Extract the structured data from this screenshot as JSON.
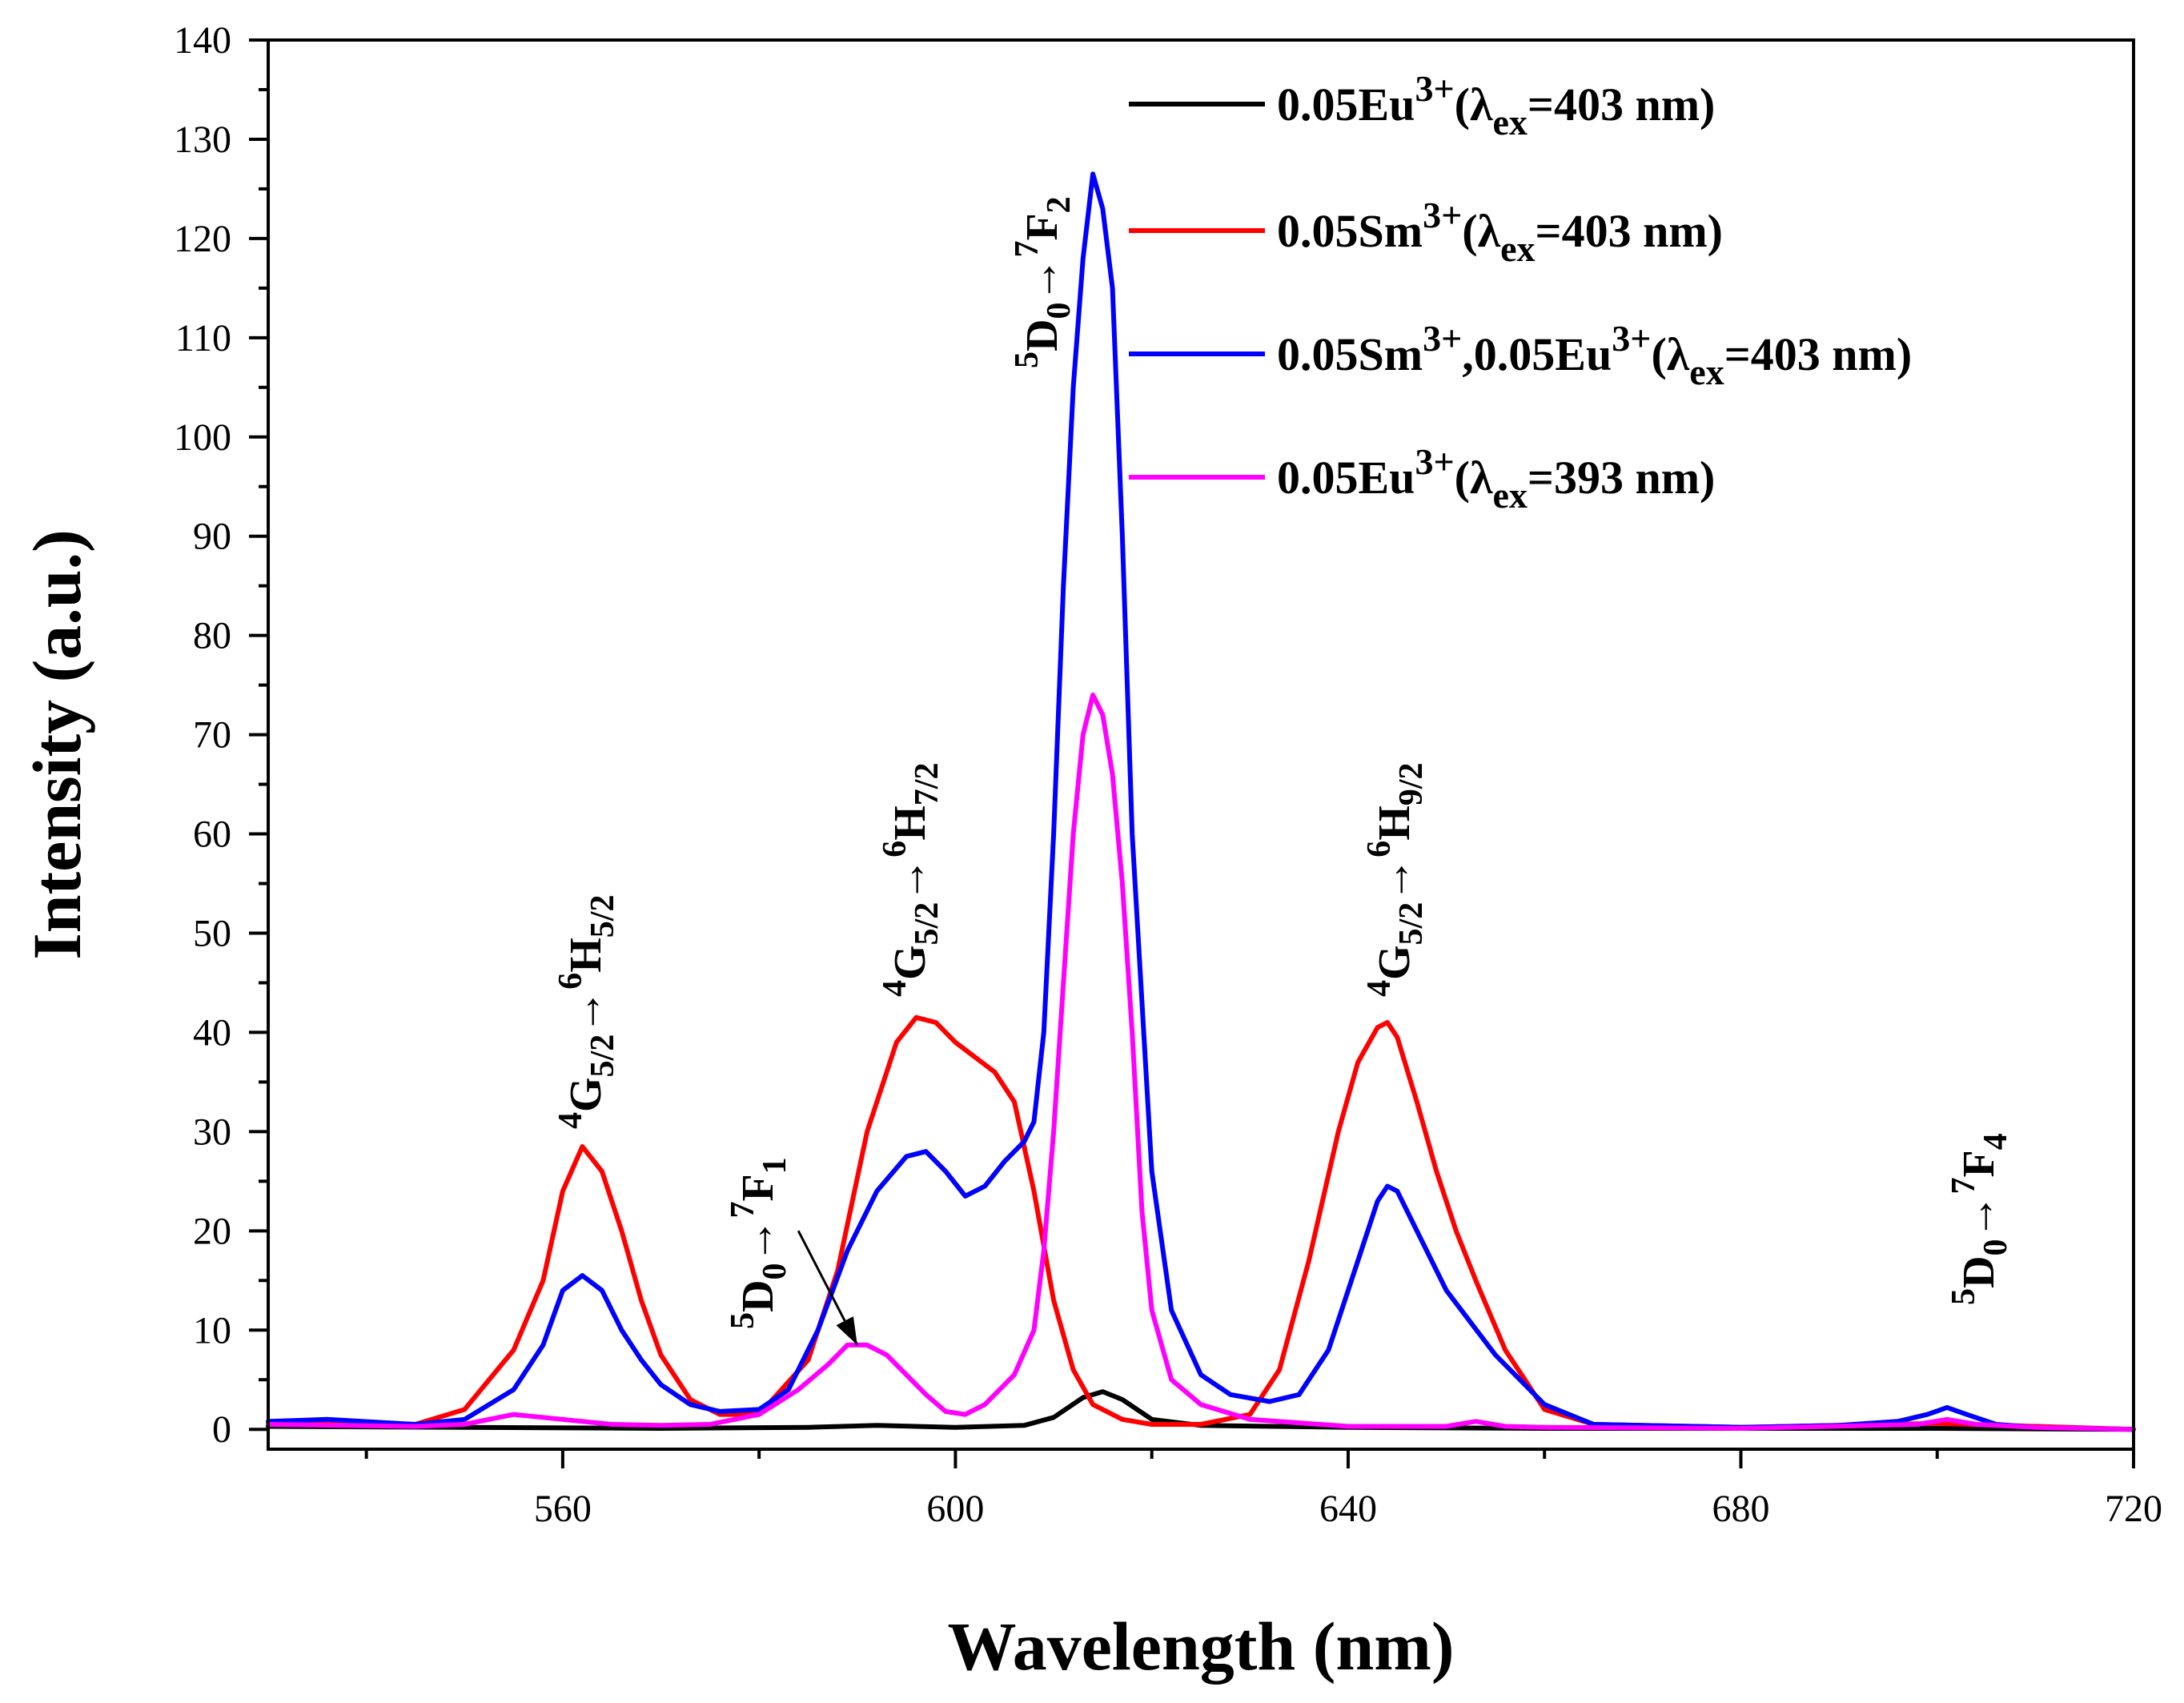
{
  "chart_data": {
    "type": "line",
    "xlabel": "Wavelength (nm)",
    "ylabel": "Intensity (a.u.)",
    "xlim": [
      530,
      720
    ],
    "ylim": [
      -2,
      140
    ],
    "xticks": [
      560,
      600,
      640,
      680,
      720
    ],
    "yticks": [
      0,
      10,
      20,
      30,
      40,
      50,
      60,
      70,
      80,
      90,
      100,
      110,
      120,
      130,
      140
    ],
    "grid": false,
    "legend_position": "top-right",
    "series": [
      {
        "name": "0.05Eu3+(λex=403 nm)",
        "label_parts": {
          "base": "0.05Eu",
          "sup": "3+",
          "open": "(λ",
          "sub": "ex",
          "rest": "=403 nm)"
        },
        "color": "#000000",
        "x": [
          530,
          550,
          570,
          585,
          592,
          600,
          607,
          610,
          613,
          615,
          617,
          620,
          625,
          640,
          660,
          700,
          720
        ],
        "y": [
          0.3,
          0.2,
          0.1,
          0.2,
          0.4,
          0.2,
          0.4,
          1.2,
          3.2,
          3.8,
          3.0,
          1.0,
          0.4,
          0.2,
          0.1,
          0.1,
          0.0
        ]
      },
      {
        "name": "0.05Sm3+(λex=403 nm)",
        "label_parts": {
          "base": "0.05Sm",
          "sup": "3+",
          "open": "(λ",
          "sub": "ex",
          "rest": "=403 nm)"
        },
        "color": "#ff0000",
        "x": [
          530,
          545,
          550,
          555,
          558,
          560,
          562,
          564,
          566,
          568,
          570,
          573,
          576,
          580,
          585,
          588,
          591,
          594,
          596,
          598,
          600,
          602,
          604,
          606,
          608,
          610,
          612,
          614,
          617,
          620,
          625,
          630,
          633,
          636,
          639,
          641,
          643,
          644,
          645,
          647,
          649,
          651,
          653,
          656,
          660,
          665,
          680,
          700,
          720
        ],
        "y": [
          0.5,
          0.5,
          2.0,
          8.0,
          15.0,
          24.0,
          28.5,
          26.0,
          20.0,
          13.0,
          7.5,
          3.0,
          1.5,
          1.5,
          7.0,
          16.0,
          30.0,
          39.0,
          41.5,
          41.0,
          39.0,
          37.5,
          36.0,
          33.0,
          24.0,
          13.0,
          6.0,
          2.5,
          1.0,
          0.5,
          0.5,
          1.5,
          6.0,
          17.0,
          30.0,
          37.0,
          40.5,
          41.0,
          39.5,
          33.0,
          26.0,
          20.0,
          15.0,
          8.0,
          2.0,
          0.5,
          0.2,
          0.6,
          0.0
        ]
      },
      {
        "name": "0.05Sm3+,0.05Eu3+(λex=403 nm)",
        "label_parts": {
          "base": "0.05Sm",
          "sup": "3+",
          "mid": ",0.05Eu",
          "sup2": "3+",
          "open": "(λ",
          "sub": "ex",
          "rest": "=403 nm)"
        },
        "color": "#0000ff",
        "x": [
          530,
          536,
          545,
          550,
          555,
          558,
          560,
          562,
          564,
          566,
          568,
          570,
          573,
          576,
          580,
          583,
          586,
          589,
          592,
          595,
          597,
          599,
          601,
          603,
          605,
          607,
          608,
          609,
          610,
          611,
          612,
          613,
          614,
          615,
          616,
          617,
          618,
          620,
          622,
          625,
          628,
          632,
          635,
          638,
          641,
          643,
          644,
          645,
          647,
          650,
          655,
          660,
          665,
          680,
          690,
          696,
          699,
          701,
          703,
          706,
          710,
          720
        ],
        "y": [
          0.8,
          1.0,
          0.5,
          1.0,
          4.0,
          8.5,
          14.0,
          15.5,
          14.0,
          10.0,
          7.0,
          4.5,
          2.5,
          1.8,
          2.0,
          4.0,
          10.0,
          18.0,
          24.0,
          27.5,
          28.0,
          26.0,
          23.5,
          24.5,
          27.0,
          29.0,
          31.0,
          40.0,
          60.0,
          85.0,
          105.0,
          118.0,
          126.5,
          123.0,
          115.0,
          90.0,
          60.0,
          26.0,
          12.0,
          5.5,
          3.5,
          2.8,
          3.5,
          8.0,
          17.0,
          23.0,
          24.5,
          24.0,
          20.0,
          14.0,
          7.5,
          2.5,
          0.5,
          0.2,
          0.4,
          0.8,
          1.5,
          2.2,
          1.5,
          0.5,
          0.2,
          0.0
        ]
      },
      {
        "name": "0.05Eu3+(λex=393 nm)",
        "label_parts": {
          "base": "0.05Eu",
          "sup": "3+",
          "open": "(λ",
          "sub": "ex",
          "rest": "=393 nm)"
        },
        "color": "#ff00ff",
        "x": [
          530,
          545,
          550,
          555,
          560,
          565,
          570,
          575,
          580,
          584,
          587,
          589,
          591,
          593,
          595,
          597,
          599,
          601,
          603,
          606,
          608,
          609,
          610,
          611,
          612,
          613,
          614,
          615,
          616,
          617,
          618,
          619,
          620,
          622,
          625,
          630,
          640,
          650,
          653,
          656,
          660,
          680,
          698,
          701,
          704,
          710,
          720
        ],
        "y": [
          0.5,
          0.3,
          0.5,
          1.5,
          1.0,
          0.5,
          0.4,
          0.5,
          1.5,
          4.0,
          6.5,
          8.5,
          8.5,
          7.5,
          5.5,
          3.5,
          1.8,
          1.5,
          2.5,
          5.5,
          10.0,
          18.0,
          30.0,
          45.0,
          60.0,
          70.0,
          74.0,
          72.0,
          66.0,
          55.0,
          40.0,
          22.0,
          12.0,
          5.0,
          2.5,
          1.0,
          0.3,
          0.3,
          0.8,
          0.3,
          0.2,
          0.1,
          0.5,
          1.0,
          0.5,
          0.2,
          0.0
        ]
      }
    ],
    "annotations": [
      {
        "id": "h52",
        "x": 562,
        "y": 28.5,
        "lower": "G",
        "lower_sub": "5/2",
        "lower_sup": "4",
        "upper": "H",
        "upper_sub": "5/2",
        "upper_sup": "6",
        "arrow": "→"
      },
      {
        "id": "f1",
        "x": 578,
        "y": 6,
        "lower": "D",
        "lower_sub": "0",
        "lower_sup": "5",
        "upper": "F",
        "upper_sub": "1",
        "upper_sup": "7",
        "arrow": "→"
      },
      {
        "id": "h72",
        "x": 598,
        "y": 41.5,
        "lower": "G",
        "lower_sub": "5/2",
        "lower_sup": "4",
        "upper": "H",
        "upper_sub": "7/2",
        "upper_sup": "6",
        "arrow": "→"
      },
      {
        "id": "f2",
        "x": 612,
        "y": 126.5,
        "lower": "D",
        "lower_sub": "0",
        "lower_sup": "5",
        "upper": "F",
        "upper_sub": "2",
        "upper_sup": "7",
        "arrow": "→"
      },
      {
        "id": "h92",
        "x": 644,
        "y": 41,
        "lower": "G",
        "lower_sub": "5/2",
        "lower_sup": "4",
        "upper": "H",
        "upper_sub": "9/2",
        "upper_sup": "6",
        "arrow": "→"
      },
      {
        "id": "f4",
        "x": 701,
        "y": 2.2,
        "lower": "D",
        "lower_sub": "0",
        "lower_sup": "5",
        "upper": "F",
        "upper_sub": "4",
        "upper_sup": "7",
        "arrow": "→"
      }
    ],
    "pointer_arrow": {
      "from": [
        584,
        20
      ],
      "to": [
        590,
        8.5
      ]
    }
  }
}
